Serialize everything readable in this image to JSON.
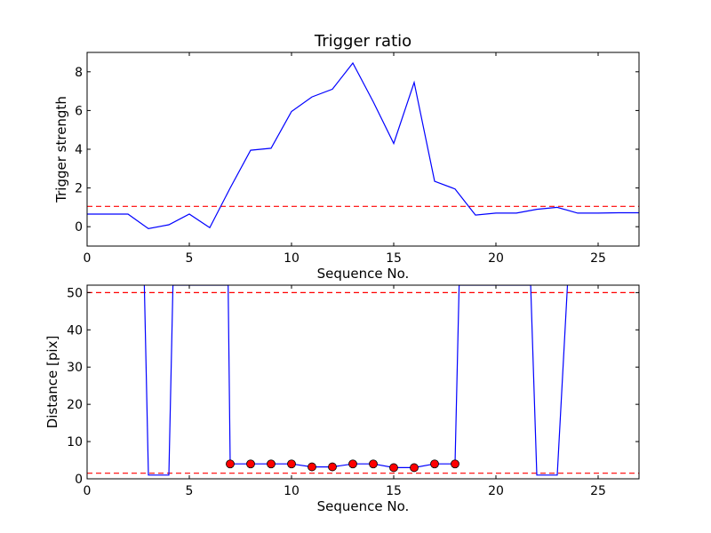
{
  "chart_data": [
    {
      "type": "line",
      "title": "Trigger ratio",
      "xlabel": "Sequence No.",
      "ylabel": "Trigger strength",
      "xlim": [
        0,
        27
      ],
      "ylim": [
        -1,
        9
      ],
      "xticks": [
        0,
        5,
        10,
        15,
        20,
        25
      ],
      "yticks": [
        0,
        2,
        4,
        6,
        8
      ],
      "series": [
        {
          "color": "#0000ff",
          "x": [
            0,
            1,
            2,
            3,
            4,
            5,
            6,
            7,
            8,
            9,
            10,
            11,
            12,
            13,
            14,
            15,
            16,
            17,
            18,
            19,
            20,
            21,
            22,
            23,
            24,
            25,
            26,
            27
          ],
          "values": [
            0.65,
            0.65,
            0.65,
            -0.1,
            0.1,
            0.65,
            -0.05,
            2.0,
            3.95,
            4.05,
            5.95,
            6.7,
            7.1,
            8.45,
            6.45,
            4.3,
            7.45,
            2.35,
            1.95,
            0.6,
            0.7,
            0.7,
            0.9,
            1.0,
            0.7,
            0.7,
            0.72,
            0.72
          ]
        }
      ],
      "hlines": [
        {
          "y": 1.05,
          "color": "#ff0000",
          "style": "dashed"
        }
      ]
    },
    {
      "type": "line",
      "title": "",
      "xlabel": "Sequence No.",
      "ylabel": "Distance [pix]",
      "xlim": [
        0,
        27
      ],
      "ylim": [
        0,
        52
      ],
      "xticks": [
        0,
        5,
        10,
        15,
        20,
        25
      ],
      "yticks": [
        0,
        10,
        20,
        30,
        40,
        50
      ],
      "series": [
        {
          "color": "#0000ff",
          "x": [
            2.8,
            3.0,
            4.0,
            4.2,
            6.9,
            7,
            8,
            9,
            10,
            11,
            12,
            13,
            14,
            15,
            16,
            17,
            18,
            18.2,
            21.7,
            22,
            23,
            23.5
          ],
          "values": [
            52,
            1,
            1,
            52,
            52,
            4,
            4,
            4,
            4,
            3.2,
            3.2,
            4,
            4,
            3,
            3,
            4,
            4,
            52,
            52,
            1,
            1,
            52
          ]
        }
      ],
      "markers": {
        "color": "#ff0000",
        "x": [
          7,
          8,
          9,
          10,
          11,
          12,
          13,
          14,
          15,
          16,
          17,
          18
        ],
        "values": [
          4,
          4,
          4,
          4,
          3.2,
          3.2,
          4,
          4,
          3,
          3,
          4,
          4
        ]
      },
      "hlines": [
        {
          "y": 50,
          "color": "#ff0000",
          "style": "dashed"
        },
        {
          "y": 1.5,
          "color": "#ff0000",
          "style": "dashed"
        }
      ]
    }
  ]
}
